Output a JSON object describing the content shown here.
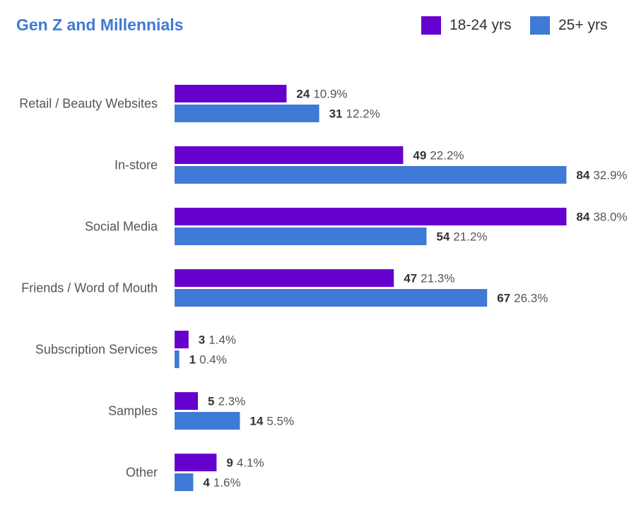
{
  "title": "Gen Z and Millennials",
  "legend": {
    "series_a": {
      "label": "18-24 yrs",
      "color": "#6600cc"
    },
    "series_b": {
      "label": "25+ yrs",
      "color": "#3f7ad6"
    }
  },
  "chart_data": {
    "type": "bar",
    "orientation": "horizontal",
    "title": "Gen Z and Millennials",
    "xlabel": "",
    "ylabel": "",
    "grid": false,
    "legend_position": "top-right",
    "categories": [
      "Retail / Beauty Websites",
      "In-store",
      "Social Media",
      "Friends / Word of Mouth",
      "Subscription Services",
      "Samples",
      "Other"
    ],
    "series": [
      {
        "name": "18-24 yrs",
        "color": "#6600cc",
        "counts": [
          24,
          49,
          84,
          47,
          3,
          5,
          9
        ],
        "labels": [
          "10.9%",
          "22.2%",
          "38.0%",
          "21.3%",
          "1.4%",
          "2.3%",
          "4.1%"
        ],
        "values": [
          10.9,
          22.2,
          38.0,
          21.3,
          1.4,
          2.3,
          4.1
        ]
      },
      {
        "name": "25+ yrs",
        "color": "#3f7ad6",
        "counts": [
          31,
          84,
          54,
          67,
          1,
          14,
          4
        ],
        "labels": [
          "12.2%",
          "32.9%",
          "21.2%",
          "26.3%",
          "0.4%",
          "5.5%",
          "1.6%"
        ],
        "values": [
          12.2,
          32.9,
          21.2,
          26.3,
          0.4,
          5.5,
          1.6
        ]
      }
    ]
  }
}
